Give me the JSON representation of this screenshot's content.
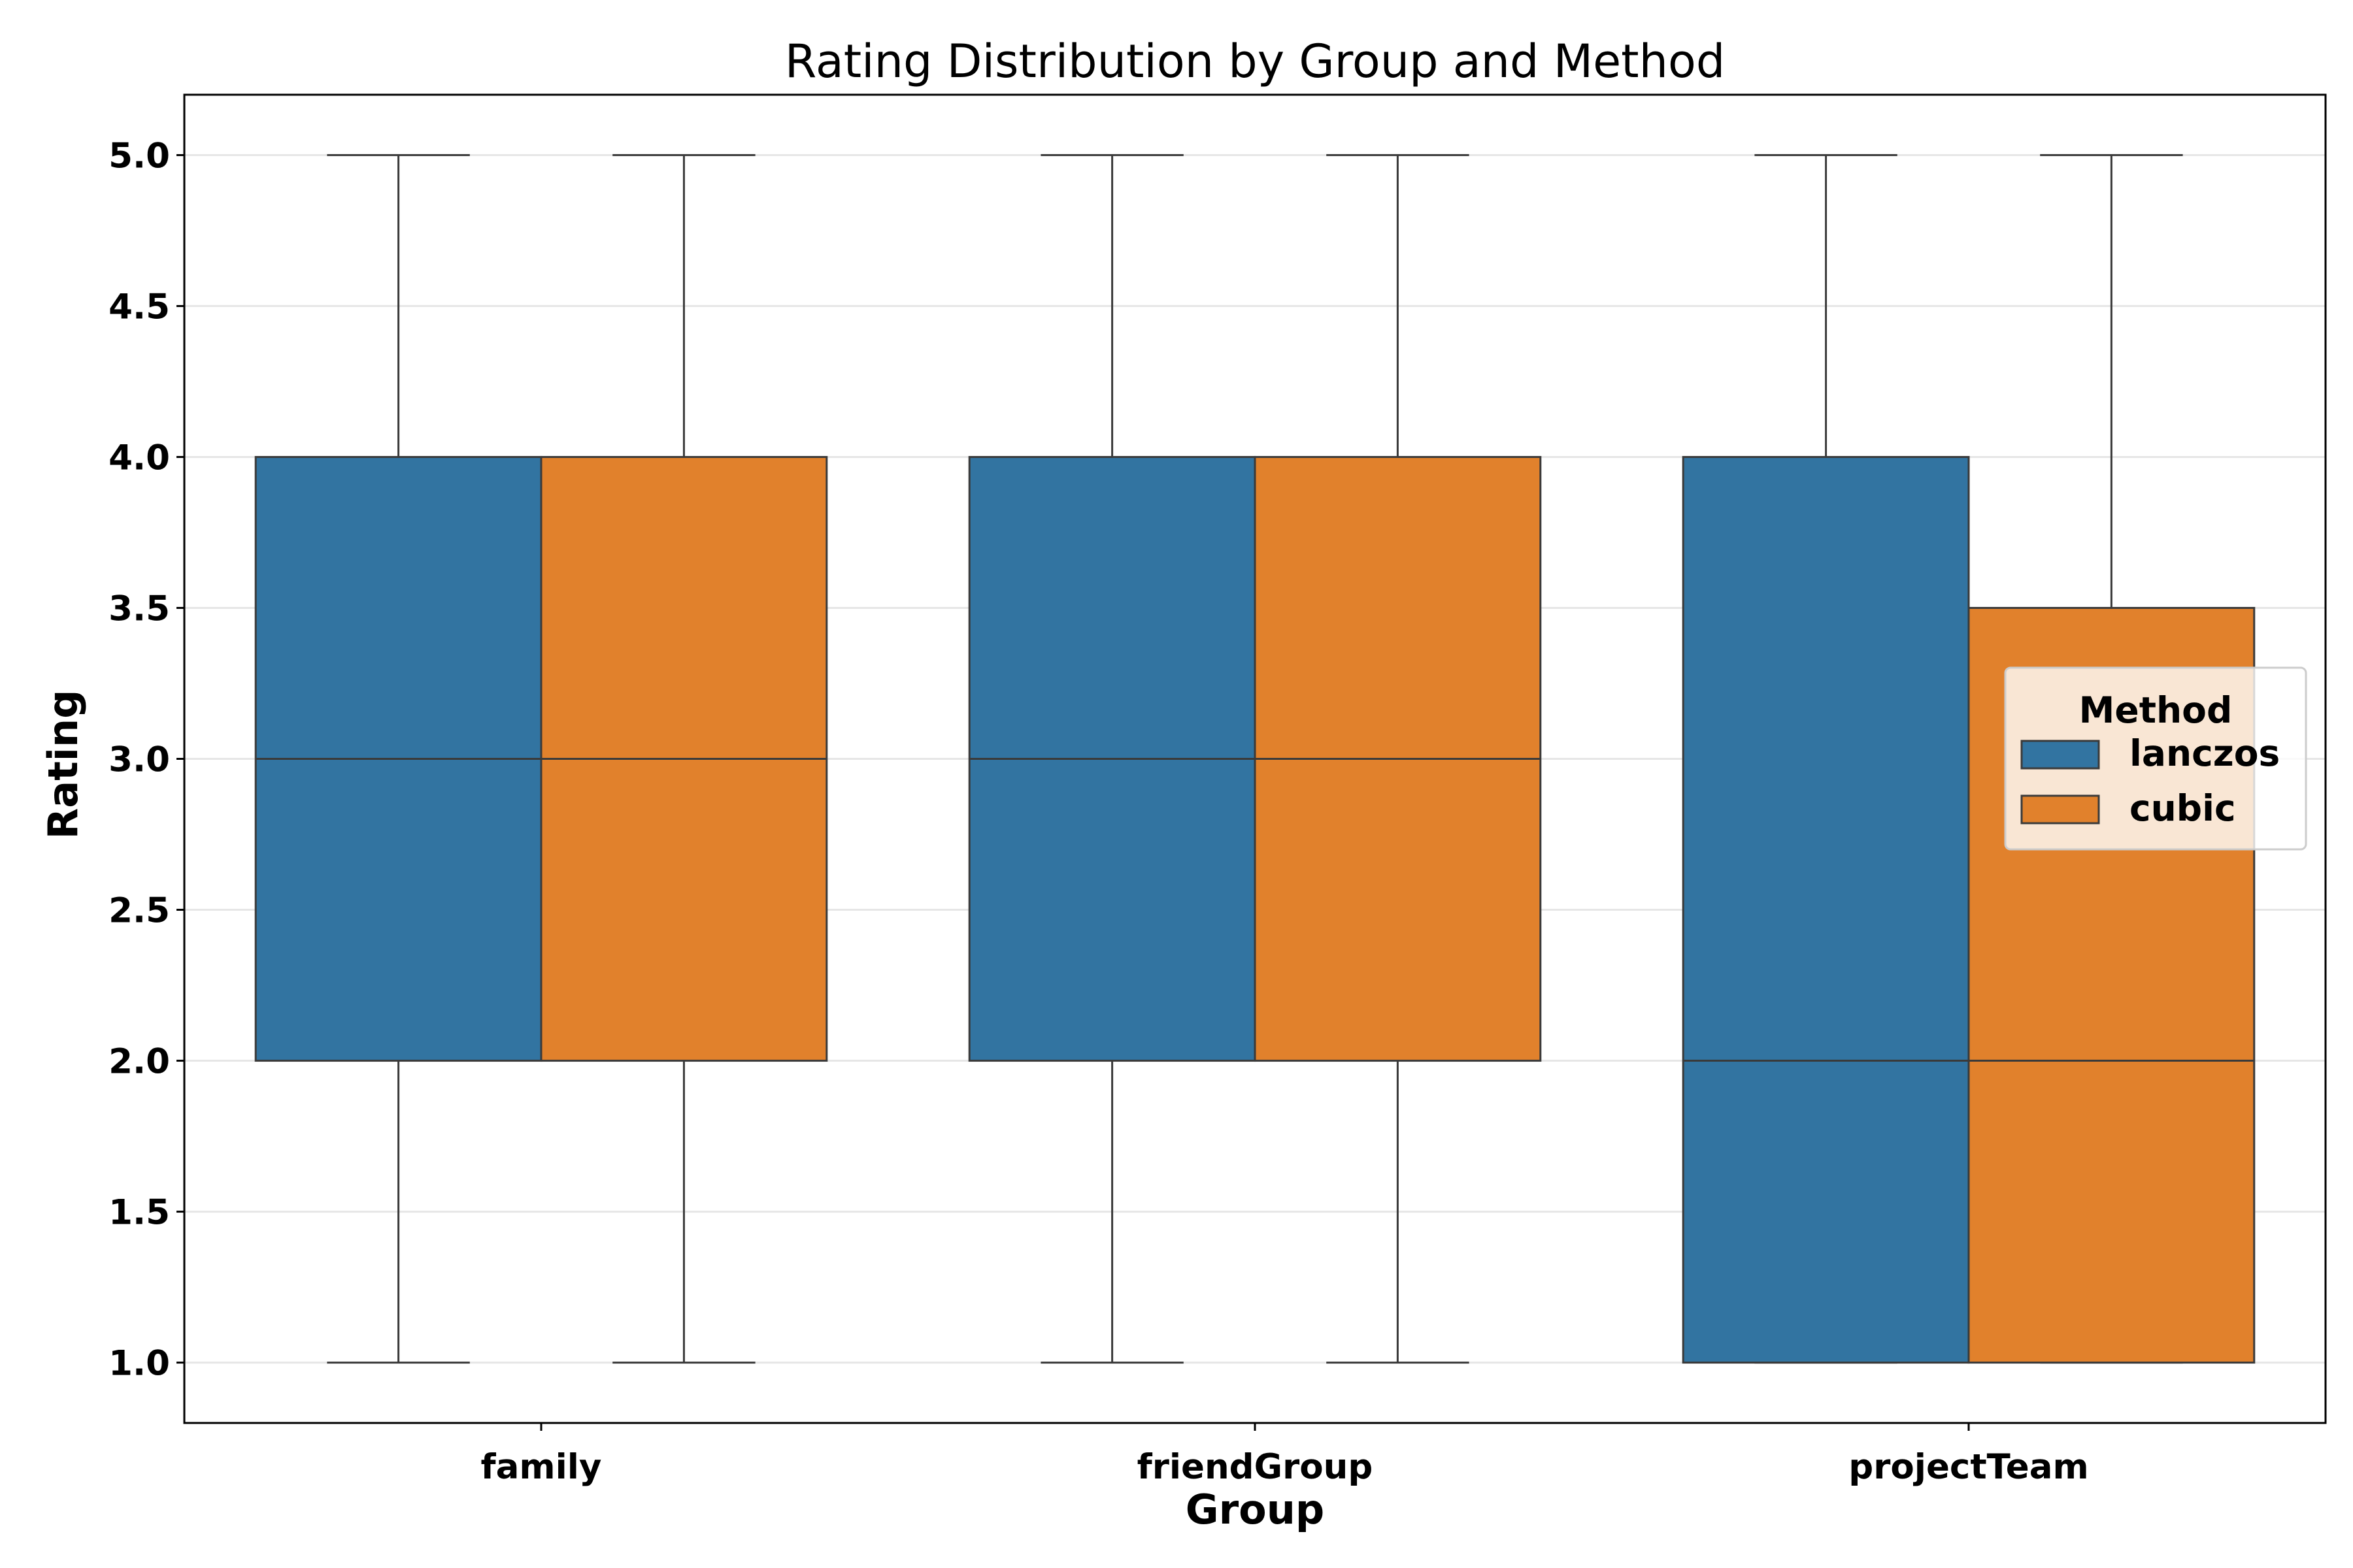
{
  "chart_data": {
    "type": "box",
    "title": "Rating Distribution by Group and Method",
    "xlabel": "Group",
    "ylabel": "Rating",
    "categories": [
      "family",
      "friendGroup",
      "projectTeam"
    ],
    "ylim": [
      0.8,
      5.2
    ],
    "yticks": [
      "1.0",
      "1.5",
      "2.0",
      "2.5",
      "3.0",
      "3.5",
      "4.0",
      "4.5",
      "5.0"
    ],
    "grid": "horizontal",
    "legend": {
      "title": "Method",
      "placement": "center-right"
    },
    "series": [
      {
        "name": "lanczos",
        "color": "#3274a1",
        "boxes": [
          {
            "whisker_low": 1.0,
            "q1": 2.0,
            "median": 3.0,
            "q3": 4.0,
            "whisker_high": 5.0
          },
          {
            "whisker_low": 1.0,
            "q1": 2.0,
            "median": 3.0,
            "q3": 4.0,
            "whisker_high": 5.0
          },
          {
            "whisker_low": 1.0,
            "q1": 1.0,
            "median": 2.0,
            "q3": 4.0,
            "whisker_high": 5.0
          }
        ]
      },
      {
        "name": "cubic",
        "color": "#e1812c",
        "boxes": [
          {
            "whisker_low": 1.0,
            "q1": 2.0,
            "median": 3.0,
            "q3": 4.0,
            "whisker_high": 5.0
          },
          {
            "whisker_low": 1.0,
            "q1": 2.0,
            "median": 3.0,
            "q3": 4.0,
            "whisker_high": 5.0
          },
          {
            "whisker_low": 1.0,
            "q1": 1.0,
            "median": 2.0,
            "q3": 3.5,
            "whisker_high": 5.0
          }
        ]
      }
    ]
  }
}
